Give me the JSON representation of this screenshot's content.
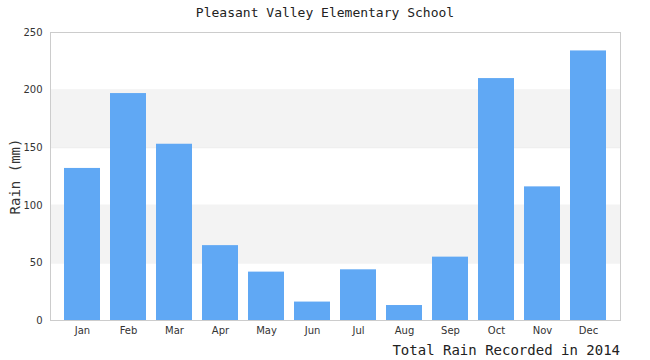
{
  "chart_data": {
    "type": "bar",
    "title": "Pleasant Valley Elementary School",
    "x_label": "Total Rain Recorded in 2014",
    "y_label": "Rain (mm)",
    "categories": [
      "Jan",
      "Feb",
      "Mar",
      "Apr",
      "May",
      "Jun",
      "Jul",
      "Aug",
      "Sep",
      "Oct",
      "Nov",
      "Dec"
    ],
    "values": [
      132,
      197,
      153,
      65,
      42,
      16,
      44,
      13,
      55,
      210,
      116,
      234
    ],
    "color": "#60a8f4",
    "ylim": [
      0,
      250
    ],
    "yticks": [
      0,
      50,
      100,
      150,
      200,
      250
    ],
    "grid": true
  }
}
